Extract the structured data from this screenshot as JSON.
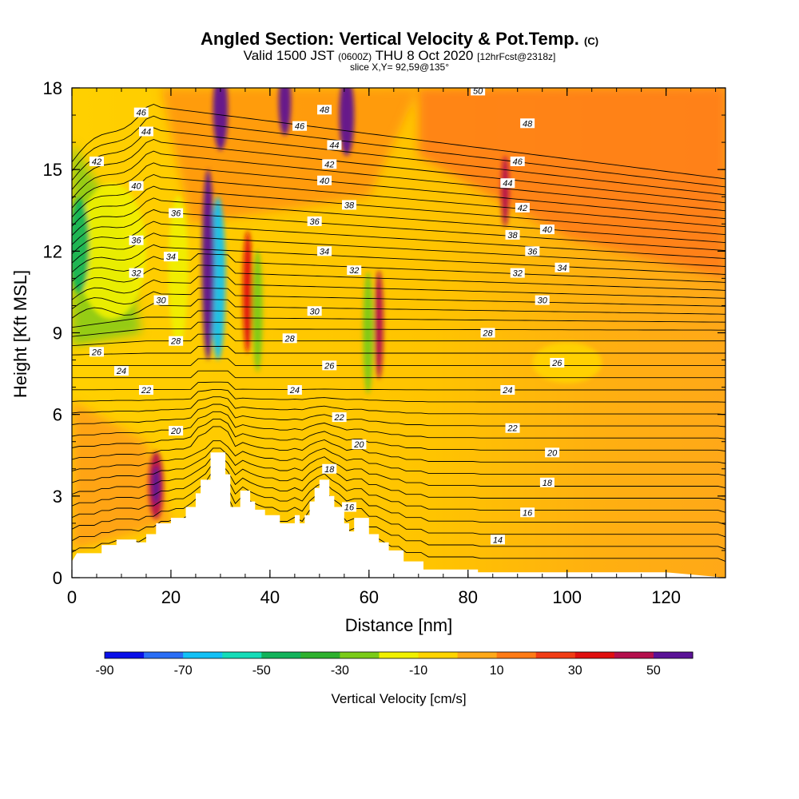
{
  "header": {
    "title": "Angled Section: Vertical Velocity & Pot.Temp.",
    "title_mark": "(C)",
    "valid_prefix": "Valid 1500 JST",
    "valid_zulu": "(0600Z)",
    "valid_date": "THU 8 Oct 2020",
    "forecast": "[12hrFcst@2318z]",
    "slice": "slice X,Y= 92,59@135°"
  },
  "chart_data": {
    "type": "heatmap",
    "xlabel": "Distance [nm]",
    "ylabel": "Height [Kft MSL]",
    "xlim": [
      0,
      132
    ],
    "ylim": [
      0,
      18
    ],
    "x_ticks": [
      0,
      20,
      40,
      60,
      80,
      100,
      120
    ],
    "y_ticks": [
      0,
      3,
      6,
      9,
      12,
      15,
      18
    ],
    "terrain_profile": [
      [
        0,
        0.6
      ],
      [
        1,
        0.9
      ],
      [
        6,
        0.9
      ],
      [
        6,
        1.2
      ],
      [
        9,
        1.2
      ],
      [
        9,
        1.4
      ],
      [
        13,
        1.4
      ],
      [
        13,
        1.3
      ],
      [
        15,
        1.3
      ],
      [
        15,
        1.6
      ],
      [
        17,
        1.6
      ],
      [
        17,
        2.0
      ],
      [
        20,
        2.0
      ],
      [
        20,
        2.2
      ],
      [
        23,
        2.2
      ],
      [
        23,
        2.6
      ],
      [
        25,
        2.6
      ],
      [
        25,
        3.1
      ],
      [
        26,
        3.1
      ],
      [
        26,
        3.6
      ],
      [
        28,
        3.6
      ],
      [
        28,
        4.6
      ],
      [
        31,
        4.6
      ],
      [
        31,
        3.8
      ],
      [
        32,
        3.8
      ],
      [
        32,
        2.6
      ],
      [
        34,
        2.6
      ],
      [
        34,
        3.2
      ],
      [
        36,
        3.2
      ],
      [
        36,
        2.8
      ],
      [
        37,
        2.8
      ],
      [
        37,
        2.5
      ],
      [
        39,
        2.5
      ],
      [
        39,
        2.3
      ],
      [
        42,
        2.3
      ],
      [
        42,
        2.0
      ],
      [
        45,
        2.0
      ],
      [
        45,
        2.3
      ],
      [
        46,
        2.3
      ],
      [
        46,
        2.0
      ],
      [
        47,
        2.0
      ],
      [
        47,
        2.3
      ],
      [
        48,
        2.3
      ],
      [
        48,
        2.8
      ],
      [
        49,
        2.8
      ],
      [
        49,
        3.3
      ],
      [
        50,
        3.3
      ],
      [
        50,
        3.6
      ],
      [
        52,
        3.6
      ],
      [
        52,
        3.0
      ],
      [
        53,
        3.0
      ],
      [
        53,
        2.6
      ],
      [
        55,
        2.6
      ],
      [
        55,
        2.0
      ],
      [
        56,
        2.0
      ],
      [
        56,
        1.7
      ],
      [
        57,
        1.7
      ],
      [
        57,
        2.2
      ],
      [
        60,
        2.2
      ],
      [
        60,
        1.6
      ],
      [
        62,
        1.6
      ],
      [
        62,
        1.3
      ],
      [
        64,
        1.3
      ],
      [
        64,
        1.0
      ],
      [
        67,
        1.0
      ],
      [
        67,
        0.6
      ],
      [
        71,
        0.6
      ],
      [
        71,
        0.3
      ],
      [
        82,
        0.3
      ],
      [
        82,
        0.2
      ],
      [
        120,
        0.2
      ],
      [
        132,
        0.0
      ]
    ],
    "theta_contours": [
      {
        "label": "14",
        "x": 86,
        "y": 1.4
      },
      {
        "label": "16",
        "x": 92,
        "y": 2.4
      },
      {
        "label": "16",
        "x": 56,
        "y": 2.6
      },
      {
        "label": "18",
        "x": 52,
        "y": 4.0
      },
      {
        "label": "18",
        "x": 96,
        "y": 3.5
      },
      {
        "label": "20",
        "x": 21,
        "y": 5.4
      },
      {
        "label": "20",
        "x": 58,
        "y": 4.9
      },
      {
        "label": "20",
        "x": 97,
        "y": 4.6
      },
      {
        "label": "22",
        "x": 15,
        "y": 6.9
      },
      {
        "label": "22",
        "x": 54,
        "y": 5.9
      },
      {
        "label": "22",
        "x": 89,
        "y": 5.5
      },
      {
        "label": "24",
        "x": 10,
        "y": 7.6
      },
      {
        "label": "24",
        "x": 45,
        "y": 6.9
      },
      {
        "label": "24",
        "x": 88,
        "y": 6.9
      },
      {
        "label": "26",
        "x": 5,
        "y": 8.3
      },
      {
        "label": "26",
        "x": 52,
        "y": 7.8
      },
      {
        "label": "26",
        "x": 98,
        "y": 7.9
      },
      {
        "label": "28",
        "x": 21,
        "y": 8.7
      },
      {
        "label": "28",
        "x": 44,
        "y": 8.8
      },
      {
        "label": "28",
        "x": 84,
        "y": 9.0
      },
      {
        "label": "30",
        "x": 18,
        "y": 10.2
      },
      {
        "label": "30",
        "x": 49,
        "y": 9.8
      },
      {
        "label": "30",
        "x": 95,
        "y": 10.2
      },
      {
        "label": "32",
        "x": 13,
        "y": 11.2
      },
      {
        "label": "32",
        "x": 57,
        "y": 11.3
      },
      {
        "label": "32",
        "x": 90,
        "y": 11.2
      },
      {
        "label": "34",
        "x": 20,
        "y": 11.8
      },
      {
        "label": "34",
        "x": 51,
        "y": 12.0
      },
      {
        "label": "34",
        "x": 99,
        "y": 11.4
      },
      {
        "label": "36",
        "x": 13,
        "y": 12.4
      },
      {
        "label": "36",
        "x": 21,
        "y": 13.4
      },
      {
        "label": "36",
        "x": 49,
        "y": 13.1
      },
      {
        "label": "36",
        "x": 93,
        "y": 12.0
      },
      {
        "label": "38",
        "x": 56,
        "y": 13.7
      },
      {
        "label": "38",
        "x": 89,
        "y": 12.6
      },
      {
        "label": "40",
        "x": 13,
        "y": 14.4
      },
      {
        "label": "40",
        "x": 51,
        "y": 14.6
      },
      {
        "label": "40",
        "x": 96,
        "y": 12.8
      },
      {
        "label": "42",
        "x": 5,
        "y": 15.3
      },
      {
        "label": "42",
        "x": 52,
        "y": 15.2
      },
      {
        "label": "42",
        "x": 91,
        "y": 13.6
      },
      {
        "label": "44",
        "x": 15,
        "y": 16.4
      },
      {
        "label": "44",
        "x": 53,
        "y": 15.9
      },
      {
        "label": "44",
        "x": 88,
        "y": 14.5
      },
      {
        "label": "46",
        "x": 14,
        "y": 17.1
      },
      {
        "label": "46",
        "x": 46,
        "y": 16.6
      },
      {
        "label": "46",
        "x": 90,
        "y": 15.3
      },
      {
        "label": "48",
        "x": 51,
        "y": 17.2
      },
      {
        "label": "48",
        "x": 92,
        "y": 16.7
      },
      {
        "label": "50",
        "x": 82,
        "y": 17.9
      }
    ],
    "colorbar": {
      "label": "Vertical Velocity [cm/s]",
      "tick_labels": [
        "-90",
        "-70",
        "-50",
        "-30",
        "-10",
        "10",
        "30",
        "50"
      ],
      "colors": [
        "#0a10e8",
        "#2a6ef5",
        "#12c0f5",
        "#14dcb8",
        "#12b25a",
        "#2db02d",
        "#7acb18",
        "#f0f000",
        "#ffd400",
        "#ffa818",
        "#ff7a14",
        "#f03c14",
        "#e01010",
        "#b4104c",
        "#5a1296"
      ]
    },
    "velocity_features": [
      {
        "x": 29.5,
        "y": 11.0,
        "w": 3.0,
        "h": 6.0,
        "value": -80
      },
      {
        "x": 27.5,
        "y": 11.5,
        "w": 2.5,
        "h": 7.0,
        "value": 45
      },
      {
        "x": 37.5,
        "y": 9.8,
        "w": 2.0,
        "h": 4.5,
        "value": -35
      },
      {
        "x": 35.5,
        "y": 10.5,
        "w": 2.0,
        "h": 4.5,
        "value": 25
      },
      {
        "x": 59.8,
        "y": 9.0,
        "w": 2.0,
        "h": 4.5,
        "value": -35
      },
      {
        "x": 62.0,
        "y": 9.3,
        "w": 1.8,
        "h": 4.0,
        "value": 35
      },
      {
        "x": 21.5,
        "y": 11.3,
        "w": 4.0,
        "h": 5.5,
        "value": -30
      },
      {
        "x": 8.0,
        "y": 12.0,
        "w": 14.0,
        "h": 5.0,
        "value": -30
      },
      {
        "x": 1.5,
        "y": 12.2,
        "w": 4.0,
        "h": 3.5,
        "value": -55
      },
      {
        "x": 17.0,
        "y": 3.4,
        "w": 3.0,
        "h": 2.5,
        "value": 35
      },
      {
        "x": 17.0,
        "y": 3.4,
        "w": 1.6,
        "h": 1.4,
        "value": 50
      },
      {
        "x": 87.5,
        "y": 14.2,
        "w": 1.6,
        "h": 2.6,
        "value": 30
      },
      {
        "x": 100.0,
        "y": 7.9,
        "w": 14.0,
        "h": 1.5,
        "value": -12
      },
      {
        "x": 30.0,
        "y": 17.2,
        "w": 3.0,
        "h": 3.0,
        "value": 45
      },
      {
        "x": 43.0,
        "y": 17.5,
        "w": 2.5,
        "h": 2.5,
        "value": 40
      },
      {
        "x": 55.5,
        "y": 17.0,
        "w": 3.0,
        "h": 3.0,
        "value": 45
      }
    ]
  }
}
